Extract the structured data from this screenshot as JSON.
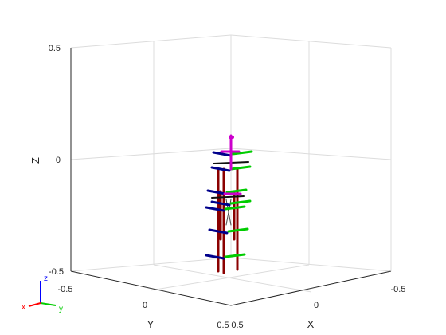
{
  "chart_data": {
    "type": "3d-frames",
    "title": "",
    "xlabel": "X",
    "ylabel": "Y",
    "zlabel": "Z",
    "x_ticks": [
      "-0.5",
      "0",
      "0.5"
    ],
    "y_ticks": [
      "-0.5",
      "0",
      "0.5"
    ],
    "z_ticks": [
      "-0.5",
      "0",
      "0.5"
    ],
    "xlim": [
      -0.5,
      0.5
    ],
    "ylim": [
      -0.5,
      0.5
    ],
    "zlim": [
      -0.5,
      0.5
    ],
    "grid": true,
    "colors": {
      "link": "#8b0000",
      "frame_x": "#00008b",
      "frame_y": "#00cc00",
      "frame_dark": "#111111",
      "end_effector": "#cc00cc",
      "grid": "#dcdcdc",
      "box": "#262626"
    }
  },
  "triad": {
    "x": "x",
    "y": "y",
    "z": "z"
  }
}
